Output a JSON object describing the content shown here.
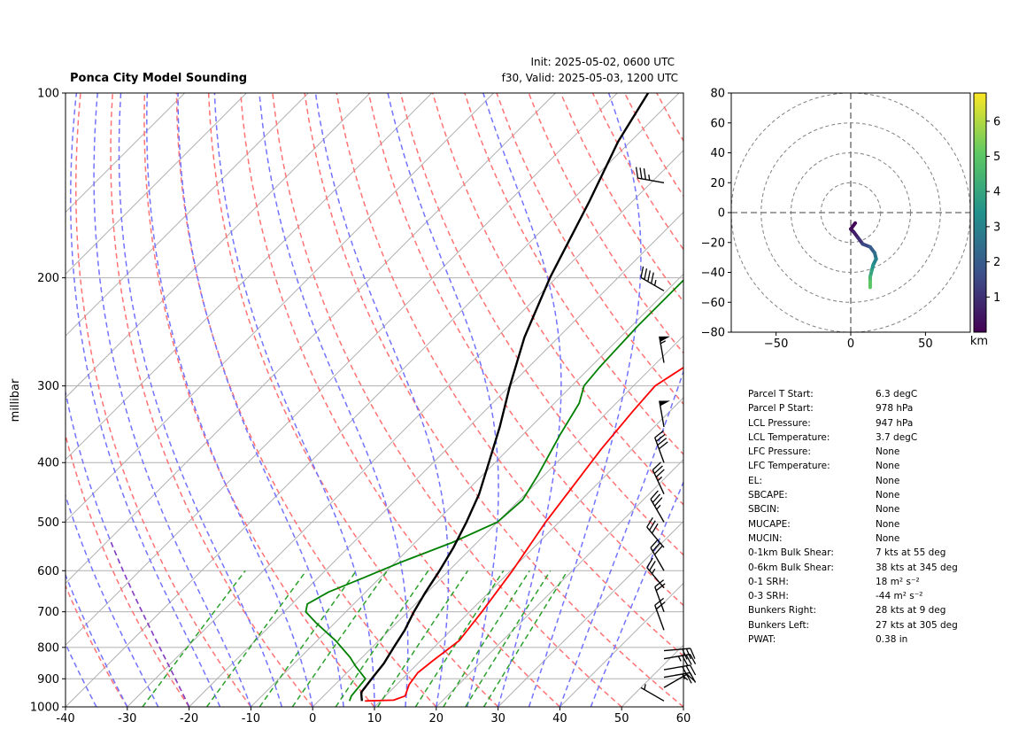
{
  "title": "Ponca City Model Sounding",
  "init_text": "Init: 2025-05-02, 0600 UTC",
  "valid_text": "f30, Valid: 2025-05-03, 1200 UTC",
  "colors": {
    "temperature": "#ff0000",
    "dewpoint": "#008000",
    "parcel": "#000000",
    "dry_adiabat": "#ff7373",
    "moist_adiabat": "#7373ff",
    "mixing_ratio": "#2ca02c",
    "isotherm": "#b0b0b0",
    "dgz": "#8b3fbf"
  },
  "chart_data": [
    {
      "type": "line",
      "name": "skew-t",
      "xlabel": "",
      "ylabel": "millibar",
      "x_ticks": [
        -40,
        -30,
        -20,
        -10,
        0,
        10,
        20,
        30,
        40,
        50,
        60
      ],
      "y_ticks": [
        100,
        200,
        300,
        400,
        500,
        600,
        700,
        800,
        900,
        1000
      ],
      "xlim": [
        -40,
        60
      ],
      "ylim": [
        1000,
        100
      ],
      "y_scale": "log",
      "grid": true,
      "series": [
        {
          "key": "temperature",
          "points": [
            [
              978,
              7.5
            ],
            [
              975,
              12
            ],
            [
              960,
              13.2
            ],
            [
              920,
              12
            ],
            [
              880,
              11.5
            ],
            [
              840,
              12
            ],
            [
              780,
              13
            ],
            [
              700,
              12
            ],
            [
              600,
              10.3
            ],
            [
              500,
              7.8
            ],
            [
              440,
              6.5
            ],
            [
              380,
              5
            ],
            [
              330,
              4
            ],
            [
              300,
              3.5
            ],
            [
              270,
              6
            ],
            [
              250,
              10
            ],
            [
              190,
              20
            ],
            [
              150,
              30
            ],
            [
              120,
              37
            ],
            [
              100,
              42
            ]
          ]
        },
        {
          "key": "dewpoint",
          "points": [
            [
              978,
              5
            ],
            [
              960,
              4.5
            ],
            [
              900,
              4
            ],
            [
              860,
              0.5
            ],
            [
              830,
              -2
            ],
            [
              780,
              -7
            ],
            [
              730,
              -13
            ],
            [
              700,
              -16.5
            ],
            [
              680,
              -17.5
            ],
            [
              650,
              -16
            ],
            [
              620,
              -13
            ],
            [
              580,
              -9
            ],
            [
              540,
              -4
            ],
            [
              500,
              0
            ],
            [
              460,
              0.5
            ],
            [
              420,
              -1
            ],
            [
              360,
              -4
            ],
            [
              320,
              -6
            ],
            [
              300,
              -8
            ],
            [
              280,
              -8.5
            ],
            [
              240,
              -9
            ],
            [
              195,
              -9
            ],
            [
              150,
              -7
            ],
            [
              125,
              -3
            ],
            [
              110,
              1
            ],
            [
              100,
              4.5
            ]
          ]
        },
        {
          "key": "parcel",
          "points": [
            [
              978,
              7
            ],
            [
              947,
              5.5
            ],
            [
              900,
              5
            ],
            [
              850,
              4.5
            ],
            [
              800,
              3.5
            ],
            [
              750,
              2.5
            ],
            [
              700,
              1
            ],
            [
              650,
              -0.3
            ],
            [
              600,
              -1.5
            ],
            [
              550,
              -3
            ],
            [
              500,
              -5
            ],
            [
              450,
              -7.5
            ],
            [
              400,
              -11
            ],
            [
              350,
              -15
            ],
            [
              300,
              -20
            ],
            [
              250,
              -25.5
            ],
            [
              200,
              -31
            ],
            [
              150,
              -37
            ],
            [
              120,
              -42
            ],
            [
              100,
              -45
            ]
          ]
        }
      ],
      "wind_barbs": [
        {
          "p": 978,
          "speed_kt": 5,
          "dir_deg": 300
        },
        {
          "p": 930,
          "speed_kt": 15,
          "dir_deg": 60
        },
        {
          "p": 895,
          "speed_kt": 25,
          "dir_deg": 80
        },
        {
          "p": 870,
          "speed_kt": 30,
          "dir_deg": 80
        },
        {
          "p": 835,
          "speed_kt": 35,
          "dir_deg": 80
        },
        {
          "p": 810,
          "speed_kt": 30,
          "dir_deg": 85
        },
        {
          "p": 750,
          "speed_kt": 20,
          "dir_deg": 340
        },
        {
          "p": 700,
          "speed_kt": 20,
          "dir_deg": 340
        },
        {
          "p": 640,
          "speed_kt": 25,
          "dir_deg": 320
        },
        {
          "p": 600,
          "speed_kt": 30,
          "dir_deg": 330
        },
        {
          "p": 550,
          "speed_kt": 30,
          "dir_deg": 320
        },
        {
          "p": 500,
          "speed_kt": 35,
          "dir_deg": 330
        },
        {
          "p": 450,
          "speed_kt": 35,
          "dir_deg": 335
        },
        {
          "p": 400,
          "speed_kt": 40,
          "dir_deg": 340
        },
        {
          "p": 350,
          "speed_kt": 50,
          "dir_deg": 350
        },
        {
          "p": 275,
          "speed_kt": 55,
          "dir_deg": 350
        },
        {
          "p": 210,
          "speed_kt": 45,
          "dir_deg": 300
        },
        {
          "p": 140,
          "speed_kt": 35,
          "dir_deg": 280
        }
      ]
    },
    {
      "type": "line",
      "name": "hodograph",
      "xlim": [
        -80,
        80
      ],
      "ylim": [
        -80,
        80
      ],
      "x_ticks": [
        -50,
        0,
        50
      ],
      "y_ticks": [
        -80,
        -60,
        -40,
        -20,
        0,
        20,
        40,
        60,
        80
      ],
      "rings": [
        20,
        40,
        60,
        80
      ],
      "colorbar_label": "km",
      "colorbar_ticks": [
        1,
        2,
        3,
        4,
        5,
        6
      ],
      "colorbar_range": [
        0,
        6.8
      ],
      "points": [
        {
          "u": 3,
          "v": -7,
          "h": 0.1
        },
        {
          "u": 0,
          "v": -11,
          "h": 0.3
        },
        {
          "u": 2,
          "v": -13,
          "h": 0.6
        },
        {
          "u": 5,
          "v": -17,
          "h": 1.0
        },
        {
          "u": 8,
          "v": -21,
          "h": 1.5
        },
        {
          "u": 13,
          "v": -23,
          "h": 2.0
        },
        {
          "u": 16,
          "v": -27,
          "h": 2.5
        },
        {
          "u": 17,
          "v": -31,
          "h": 3.0
        },
        {
          "u": 15,
          "v": -35,
          "h": 3.5
        },
        {
          "u": 14,
          "v": -39,
          "h": 4.0
        },
        {
          "u": 13,
          "v": -43,
          "h": 4.5
        },
        {
          "u": 13,
          "v": -46,
          "h": 5.0
        },
        {
          "u": 13,
          "v": -50,
          "h": 5.5
        }
      ]
    }
  ],
  "parameters": [
    {
      "label": "Parcel T Start:",
      "value": "6.3 degC"
    },
    {
      "label": "Parcel P Start:",
      "value": "978 hPa"
    },
    {
      "label": "LCL Pressure:",
      "value": "947 hPa"
    },
    {
      "label": "LCL Temperature:",
      "value": "3.7 degC"
    },
    {
      "label": "LFC Pressure:",
      "value": "None"
    },
    {
      "label": "LFC Temperature:",
      "value": "None"
    },
    {
      "label": "EL:",
      "value": "None"
    },
    {
      "label": "SBCAPE:",
      "value": "None"
    },
    {
      "label": "SBCIN:",
      "value": "None"
    },
    {
      "label": "MUCAPE:",
      "value": "None"
    },
    {
      "label": "MUCIN:",
      "value": "None"
    },
    {
      "label": "0-1km Bulk Shear:",
      "value": "7 kts at 55 deg"
    },
    {
      "label": "0-6km Bulk Shear:",
      "value": "38 kts at 345 deg"
    },
    {
      "label": "0-1 SRH:",
      "value": "18 m² s⁻²"
    },
    {
      "label": "0-3 SRH:",
      "value": "-44 m² s⁻²"
    },
    {
      "label": "Bunkers Right:",
      "value": "28 kts at 9 deg"
    },
    {
      "label": "Bunkers Left:",
      "value": "27 kts at 305 deg"
    },
    {
      "label": "PWAT:",
      "value": "0.38 in"
    }
  ]
}
